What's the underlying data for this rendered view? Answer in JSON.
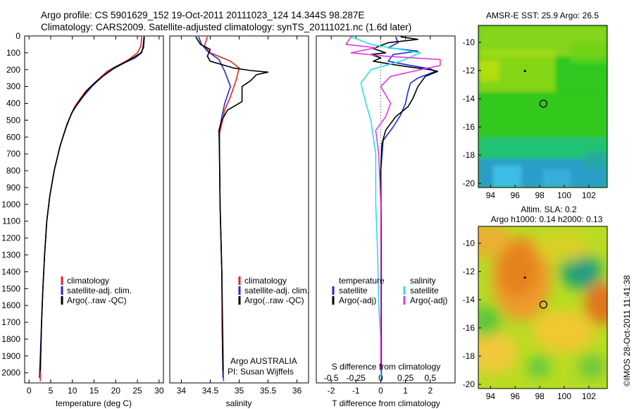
{
  "title": {
    "line1": "Argo profile: CS 5901629_152 19-Oct-2011 20111023_124 14.344S 98.287E",
    "line2": "Climatology: CARS2009. Satellite-adjusted climatology: synTS_20111021.nc (1.6d later)"
  },
  "depth_ticks": [
    "0",
    "100",
    "200",
    "300",
    "400",
    "500",
    "600",
    "700",
    "800",
    "900",
    "1000",
    "1100",
    "1200",
    "1300",
    "1400",
    "1500",
    "1600",
    "1700",
    "1800",
    "1900",
    "2000"
  ],
  "colors": {
    "climatology": "#e6231e",
    "satellite": "#1b2bd8",
    "argo": "#000000",
    "s_satellite": "#28e0e0",
    "s_argo": "#e03be0",
    "sst_map": "#2ec820",
    "sla_map": "#ffcc00"
  },
  "chart_data": [
    {
      "type": "line",
      "xlabel": "temperature (deg C)",
      "xlim": [
        -1,
        31
      ],
      "ylim": [
        2060,
        0
      ],
      "xticks": [
        "0",
        "5",
        "10",
        "15",
        "20",
        "25",
        "30"
      ],
      "legend": [
        "climatology",
        "satellite-adj. clim.",
        "Argo(..raw -QC)"
      ],
      "series": [
        {
          "name": "climatology",
          "points": [
            [
              26,
              5
            ],
            [
              25.8,
              60
            ],
            [
              25,
              100
            ],
            [
              23,
              140
            ],
            [
              20.5,
              175
            ],
            [
              18,
              210
            ],
            [
              15.5,
              270
            ],
            [
              13,
              330
            ],
            [
              10.5,
              420
            ],
            [
              8.8,
              520
            ],
            [
              7.2,
              650
            ],
            [
              5.8,
              800
            ],
            [
              4.8,
              950
            ],
            [
              4.1,
              1100
            ],
            [
              3.6,
              1300
            ],
            [
              3.2,
              1500
            ],
            [
              2.9,
              1700
            ],
            [
              2.7,
              1900
            ],
            [
              2.6,
              2050
            ]
          ]
        },
        {
          "name": "satellite-adj. clim.",
          "points": [
            [
              26.5,
              5
            ],
            [
              26.3,
              60
            ],
            [
              26,
              100
            ],
            [
              24.5,
              130
            ],
            [
              22,
              160
            ],
            [
              19.5,
              195
            ],
            [
              17,
              240
            ],
            [
              14.5,
              300
            ],
            [
              12.5,
              360
            ],
            [
              10.2,
              440
            ],
            [
              8.7,
              530
            ],
            [
              7.2,
              650
            ],
            [
              5.8,
              800
            ],
            [
              4.8,
              950
            ],
            [
              4.1,
              1100
            ],
            [
              3.6,
              1300
            ],
            [
              3.2,
              1500
            ],
            [
              2.9,
              1700
            ],
            [
              2.6,
              1900
            ],
            [
              2.4,
              2030
            ]
          ]
        },
        {
          "name": "Argo(..raw -QC)",
          "points": [
            [
              26.6,
              5
            ],
            [
              26.4,
              70
            ],
            [
              25.8,
              100
            ],
            [
              24,
              130
            ],
            [
              21.5,
              165
            ],
            [
              19.5,
              190
            ],
            [
              17.5,
              230
            ],
            [
              15.5,
              270
            ],
            [
              13.5,
              320
            ],
            [
              11.5,
              390
            ],
            [
              9.8,
              460
            ],
            [
              8.6,
              540
            ],
            [
              7.2,
              650
            ],
            [
              5.8,
              800
            ],
            [
              4.8,
              950
            ],
            [
              4.1,
              1100
            ],
            [
              3.6,
              1300
            ],
            [
              3.2,
              1500
            ],
            [
              2.9,
              1700
            ],
            [
              2.7,
              1900
            ],
            [
              2.6,
              1990
            ]
          ]
        }
      ]
    },
    {
      "type": "line",
      "xlabel": "salinity",
      "xlim": [
        33.8,
        36.2
      ],
      "ylim": [
        2060,
        0
      ],
      "xticks": [
        "34",
        "34.5",
        "35",
        "35.5",
        "36"
      ],
      "legend": [
        "climatology",
        "satellite-adj. clim.",
        "Argo(..raw -QC)"
      ],
      "annotation": [
        "Argo AUSTRALIA",
        "PI: Susan Wijffels"
      ],
      "series": [
        {
          "name": "climatology",
          "points": [
            [
              34.45,
              5
            ],
            [
              34.4,
              60
            ],
            [
              34.5,
              100
            ],
            [
              34.85,
              150
            ],
            [
              35.0,
              190
            ],
            [
              34.95,
              260
            ],
            [
              34.85,
              360
            ],
            [
              34.75,
              440
            ],
            [
              34.7,
              520
            ],
            [
              34.66,
              580
            ],
            [
              34.66,
              700
            ],
            [
              34.67,
              1000
            ],
            [
              34.7,
              1400
            ],
            [
              34.72,
              1800
            ],
            [
              34.73,
              2050
            ]
          ]
        },
        {
          "name": "satellite-adj. clim.",
          "points": [
            [
              34.3,
              5
            ],
            [
              34.35,
              50
            ],
            [
              34.45,
              90
            ],
            [
              34.65,
              140
            ],
            [
              34.75,
              210
            ],
            [
              34.85,
              300
            ],
            [
              34.75,
              400
            ],
            [
              34.7,
              480
            ],
            [
              34.66,
              560
            ],
            [
              34.66,
              700
            ],
            [
              34.67,
              1000
            ],
            [
              34.7,
              1400
            ],
            [
              34.71,
              1800
            ],
            [
              34.72,
              2030
            ]
          ]
        },
        {
          "name": "Argo(..raw -QC)",
          "points": [
            [
              34.25,
              5
            ],
            [
              34.33,
              50
            ],
            [
              34.5,
              80
            ],
            [
              34.45,
              120
            ],
            [
              34.5,
              150
            ],
            [
              34.9,
              190
            ],
            [
              35.2,
              205
            ],
            [
              35.5,
              215
            ],
            [
              35.3,
              230
            ],
            [
              35.2,
              265
            ],
            [
              35.05,
              300
            ],
            [
              35.05,
              390
            ],
            [
              34.8,
              440
            ],
            [
              34.7,
              500
            ],
            [
              34.65,
              560
            ],
            [
              34.66,
              700
            ],
            [
              34.67,
              1000
            ],
            [
              34.7,
              1400
            ],
            [
              34.71,
              1800
            ],
            [
              34.72,
              1990
            ]
          ]
        }
      ]
    },
    {
      "type": "line",
      "xlabel": "T difference from climatology",
      "xlabel2": "S difference from climatology",
      "xlim": [
        -2.6,
        3.0
      ],
      "ylim": [
        2060,
        0
      ],
      "xticks": [
        "-2",
        "-1",
        "0",
        "1",
        "2"
      ],
      "xticks2": [
        "-0.5",
        "-0.25",
        "0",
        "0.25",
        "0.5"
      ],
      "legend_temperature": [
        "temperature",
        "satellite",
        "Argo(-adj)"
      ],
      "legend_salinity": [
        "salinity",
        "satellite",
        "Argo(-adj)"
      ],
      "series": [
        {
          "name": "satellite",
          "points": [
            [
              0.6,
              5
            ],
            [
              0.7,
              40
            ],
            [
              0.3,
              70
            ],
            [
              1.5,
              90
            ],
            [
              0.5,
              110
            ],
            [
              0.3,
              150
            ],
            [
              1.2,
              175
            ],
            [
              2.0,
              195
            ],
            [
              2.2,
              210
            ],
            [
              1.5,
              250
            ],
            [
              1.2,
              280
            ],
            [
              1.1,
              330
            ],
            [
              1.0,
              400
            ],
            [
              0.8,
              470
            ],
            [
              0.5,
              540
            ],
            [
              0.1,
              620
            ],
            [
              0,
              800
            ],
            [
              0.02,
              1200
            ],
            [
              0.02,
              1600
            ],
            [
              0.03,
              2050
            ]
          ]
        },
        {
          "name": "Argo(-adj)",
          "points": [
            [
              0.8,
              5
            ],
            [
              1.5,
              20
            ],
            [
              0.3,
              40
            ],
            [
              -0.3,
              75
            ],
            [
              0.2,
              100
            ],
            [
              -0.4,
              110
            ],
            [
              0.0,
              130
            ],
            [
              -0.3,
              150
            ],
            [
              0.5,
              170
            ],
            [
              1.2,
              185
            ],
            [
              2.0,
              200
            ],
            [
              2.3,
              210
            ],
            [
              1.8,
              240
            ],
            [
              1.5,
              300
            ],
            [
              1.3,
              370
            ],
            [
              1.1,
              420
            ],
            [
              0.6,
              480
            ],
            [
              0.2,
              560
            ],
            [
              0.05,
              640
            ],
            [
              0.0,
              800
            ],
            [
              0.02,
              1200
            ],
            [
              0.02,
              1600
            ],
            [
              0.02,
              1990
            ]
          ]
        },
        {
          "name": "satellite",
          "measure": "salinity",
          "points": [
            [
              -0.3,
              5
            ],
            [
              -0.1,
              50
            ],
            [
              0.4,
              100
            ],
            [
              0.2,
              150
            ],
            [
              -0.1,
              200
            ],
            [
              -0.2,
              280
            ],
            [
              -0.15,
              400
            ],
            [
              -0.1,
              500
            ],
            [
              -0.05,
              700
            ],
            [
              -0.05,
              1000
            ],
            [
              -0.03,
              1300
            ],
            [
              -0.02,
              1600
            ],
            [
              0,
              1800
            ],
            [
              0,
              2030
            ]
          ]
        },
        {
          "name": "Argo(-adj)",
          "measure": "salinity",
          "points": [
            [
              -0.3,
              5
            ],
            [
              -0.35,
              50
            ],
            [
              -0.05,
              70
            ],
            [
              -0.3,
              100
            ],
            [
              0.05,
              120
            ],
            [
              0.6,
              140
            ],
            [
              0.6,
              175
            ],
            [
              0.4,
              200
            ],
            [
              0.1,
              240
            ],
            [
              0.0,
              300
            ],
            [
              0.1,
              400
            ],
            [
              0.05,
              480
            ],
            [
              -0.05,
              560
            ],
            [
              -0.02,
              700
            ],
            [
              0,
              1000
            ],
            [
              0,
              1400
            ],
            [
              0,
              1990
            ]
          ]
        }
      ]
    },
    {
      "type": "heatmap",
      "title": "AMSR-E SST: 25.9 Argo: 26.5",
      "xlim": [
        93,
        103.5
      ],
      "ylim": [
        -20.3,
        -8.8
      ],
      "xticks": [
        "94",
        "96",
        "98",
        "100",
        "102"
      ],
      "yticks": [
        "-10",
        "-12",
        "-14",
        "-16",
        "-18",
        "-20"
      ],
      "argo_position": [
        98.3,
        -14.35
      ],
      "track_marker": [
        96.8,
        -12.0
      ]
    },
    {
      "type": "heatmap",
      "title": "Altim. SLA: 0.2",
      "subtitle": "Argo h1000: 0.14 h2000: 0.13",
      "xlim": [
        93,
        103.5
      ],
      "ylim": [
        -20.3,
        -8.8
      ],
      "xticks": [
        "94",
        "96",
        "98",
        "100",
        "102"
      ],
      "yticks": [
        "-10",
        "-12",
        "-14",
        "-16",
        "-18",
        "-20"
      ],
      "argo_position": [
        98.3,
        -14.35
      ],
      "track_marker": [
        96.8,
        -12.4
      ]
    }
  ],
  "credit": "©IMOS 28-Oct-2011 11:41:38"
}
